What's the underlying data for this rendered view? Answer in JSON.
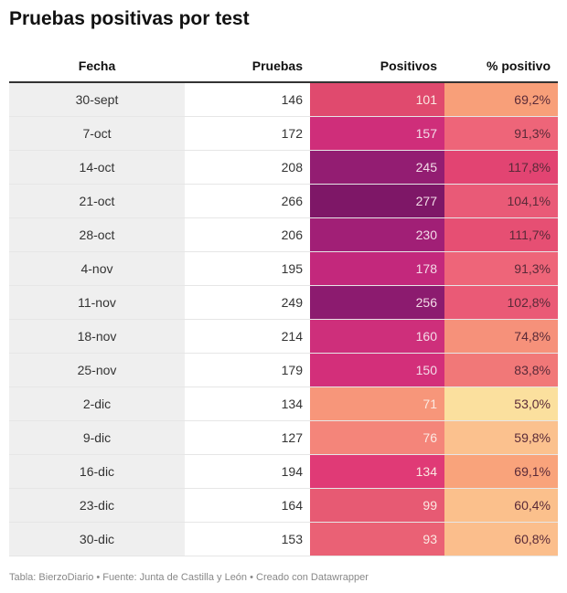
{
  "title": "Pruebas positivas por test",
  "footer": "Tabla: BierzoDiario • Fuente: Junta de Castilla y León • Creado con Datawrapper",
  "chart_data": {
    "type": "table",
    "columns": [
      "Fecha",
      "Pruebas",
      "Positivos",
      "% positivo"
    ],
    "rows": [
      {
        "fecha": "30-sept",
        "pruebas": "146",
        "positivos": "101",
        "pct": "69,2%",
        "pos_color": "#e04a6e",
        "pct_color": "#f89f79"
      },
      {
        "fecha": "7-oct",
        "pruebas": "172",
        "positivos": "157",
        "pct": "91,3%",
        "pos_color": "#cf2e7a",
        "pct_color": "#ee6579"
      },
      {
        "fecha": "14-oct",
        "pruebas": "208",
        "positivos": "245",
        "pct": "117,8%",
        "pos_color": "#931d72",
        "pct_color": "#e24472"
      },
      {
        "fecha": "21-oct",
        "pruebas": "266",
        "positivos": "277",
        "pct": "104,1%",
        "pos_color": "#7e1767",
        "pct_color": "#e95a77"
      },
      {
        "fecha": "28-oct",
        "pruebas": "206",
        "positivos": "230",
        "pct": "111,7%",
        "pos_color": "#a11f76",
        "pct_color": "#e64f73"
      },
      {
        "fecha": "4-nov",
        "pruebas": "195",
        "positivos": "178",
        "pct": "91,3%",
        "pos_color": "#c3287c",
        "pct_color": "#ee6579"
      },
      {
        "fecha": "11-nov",
        "pruebas": "249",
        "positivos": "256",
        "pct": "102,8%",
        "pos_color": "#8c1b6f",
        "pct_color": "#ea5a76"
      },
      {
        "fecha": "18-nov",
        "pruebas": "214",
        "positivos": "160",
        "pct": "74,8%",
        "pos_color": "#ce2f7b",
        "pct_color": "#f6917a"
      },
      {
        "fecha": "25-nov",
        "pruebas": "179",
        "positivos": "150",
        "pct": "83,8%",
        "pos_color": "#d32f7a",
        "pct_color": "#f17878"
      },
      {
        "fecha": "2-dic",
        "pruebas": "134",
        "positivos": "71",
        "pct": "53,0%",
        "pos_color": "#f7967a",
        "pct_color": "#fbe09e"
      },
      {
        "fecha": "9-dic",
        "pruebas": "127",
        "positivos": "76",
        "pct": "59,8%",
        "pos_color": "#f4857a",
        "pct_color": "#fbc18e"
      },
      {
        "fecha": "16-dic",
        "pruebas": "194",
        "positivos": "134",
        "pct": "69,1%",
        "pos_color": "#e03a76",
        "pct_color": "#f9a37b"
      },
      {
        "fecha": "23-dic",
        "pruebas": "164",
        "positivos": "99",
        "pct": "60,4%",
        "pos_color": "#e75a73",
        "pct_color": "#fbc08c"
      },
      {
        "fecha": "30-dic",
        "pruebas": "153",
        "positivos": "93",
        "pct": "60,8%",
        "pos_color": "#ea6175",
        "pct_color": "#fbbe8c"
      }
    ]
  }
}
